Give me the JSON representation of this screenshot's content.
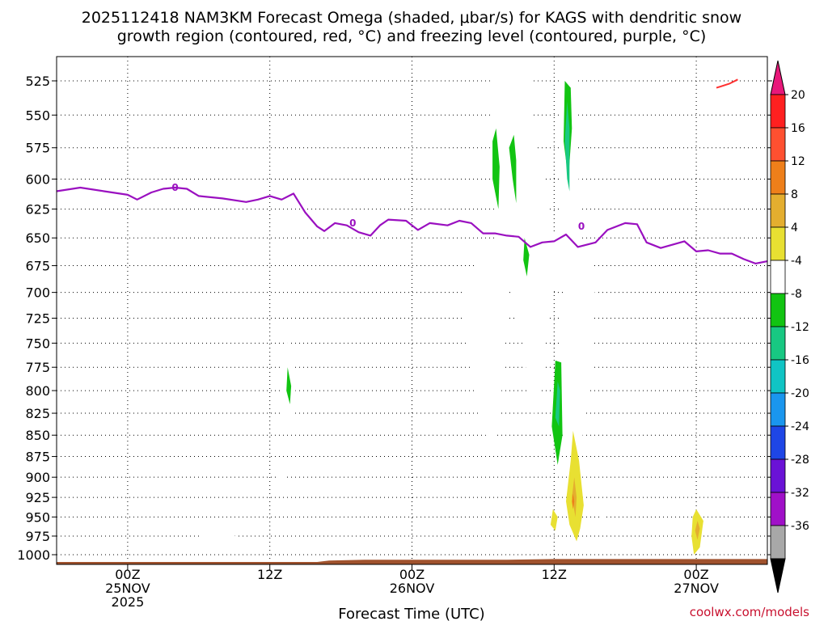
{
  "chart_data": {
    "type": "heatmap",
    "title": "2025112418 NAM3KM Forecast Omega (shaded, μbar/s) for KAGS with dendritic snow",
    "subtitle": "growth region (contoured, red, °C) and freezing level (contoured, purple, °C)",
    "xlabel": "Forecast Time (UTC)",
    "credit": "coolwx.com/models",
    "x_ticks": [
      {
        "hour": 6,
        "lines": [
          "00Z",
          "25NOV",
          "2025"
        ]
      },
      {
        "hour": 18,
        "lines": [
          "12Z"
        ]
      },
      {
        "hour": 30,
        "lines": [
          "00Z",
          "26NOV"
        ]
      },
      {
        "hour": 42,
        "lines": [
          "12Z"
        ]
      },
      {
        "hour": 54,
        "lines": [
          "00Z",
          "27NOV"
        ]
      }
    ],
    "xlim": [
      0,
      60
    ],
    "y_ticks": [
      525,
      550,
      575,
      600,
      625,
      650,
      675,
      700,
      725,
      750,
      775,
      800,
      825,
      850,
      875,
      900,
      925,
      950,
      975,
      1000
    ],
    "ylim": [
      1015,
      512
    ],
    "y_scale": "log-pressure",
    "grid": true,
    "colorbar": {
      "labels": [
        "20",
        "16",
        "12",
        "8",
        "4",
        "-4",
        "-8",
        "-12",
        "-16",
        "-20",
        "-24",
        "-28",
        "-32",
        "-36"
      ],
      "colors": [
        "#ff2020",
        "#ff5030",
        "#ee7f1a",
        "#e4ae2f",
        "#e8e032",
        "#ffffff",
        "#12c412",
        "#18c882",
        "#10c4c4",
        "#1a96ee",
        "#1e46e6",
        "#6a12d6",
        "#a010c8",
        "#a8a8a8"
      ],
      "top_cap": "#e8187a",
      "bottom_cap": "#000000"
    },
    "freezing_level": {
      "color": "#9a10c0",
      "label": "0",
      "points": [
        [
          0,
          610
        ],
        [
          2,
          607
        ],
        [
          4,
          610
        ],
        [
          6,
          613
        ],
        [
          6.8,
          617
        ],
        [
          8,
          611
        ],
        [
          9,
          608
        ],
        [
          10,
          607
        ],
        [
          11,
          608
        ],
        [
          12,
          614
        ],
        [
          14,
          616
        ],
        [
          16,
          619
        ],
        [
          17,
          617
        ],
        [
          18,
          614
        ],
        [
          19,
          617
        ],
        [
          20,
          612
        ],
        [
          21,
          628
        ],
        [
          22,
          640
        ],
        [
          22.6,
          644
        ],
        [
          23.5,
          637
        ],
        [
          24.5,
          639
        ],
        [
          25.5,
          645
        ],
        [
          26.5,
          648
        ],
        [
          27.3,
          639
        ],
        [
          28,
          634
        ],
        [
          29.5,
          635
        ],
        [
          30.5,
          643
        ],
        [
          31.5,
          637
        ],
        [
          33,
          639
        ],
        [
          34,
          635
        ],
        [
          35,
          637
        ],
        [
          36,
          646
        ],
        [
          37,
          646
        ],
        [
          38,
          648
        ],
        [
          39,
          649
        ],
        [
          40,
          658
        ],
        [
          41,
          654
        ],
        [
          42,
          653
        ],
        [
          43,
          647
        ],
        [
          44,
          658
        ],
        [
          45.5,
          654
        ],
        [
          46.5,
          643
        ],
        [
          48,
          637
        ],
        [
          49,
          638
        ],
        [
          49.8,
          654
        ],
        [
          51,
          659
        ],
        [
          52,
          656
        ],
        [
          53,
          653
        ],
        [
          54,
          662
        ],
        [
          55,
          661
        ],
        [
          56,
          664
        ],
        [
          57,
          664
        ],
        [
          58,
          669
        ],
        [
          59,
          673
        ],
        [
          60,
          671
        ]
      ],
      "labels_at": [
        [
          10,
          607
        ],
        [
          25,
          637
        ],
        [
          44.3,
          640
        ]
      ]
    },
    "dgz_contour": {
      "color": "#ff3030",
      "points": [
        [
          55.7,
          530
        ],
        [
          56.8,
          527
        ],
        [
          57.5,
          524
        ]
      ]
    },
    "omega_regions": [
      {
        "level": "-4",
        "points": [
          [
            36.6,
            512
          ],
          [
            37.2,
            650
          ],
          [
            36,
            660
          ],
          [
            34.5,
            690
          ],
          [
            34.2,
            730
          ],
          [
            35,
            770
          ],
          [
            35.8,
            840
          ],
          [
            37,
            868
          ],
          [
            37.5,
            810
          ],
          [
            38.2,
            690
          ],
          [
            39.2,
            740
          ],
          [
            40.2,
            830
          ],
          [
            41,
            790
          ],
          [
            41.5,
            720
          ],
          [
            42.2,
            690
          ],
          [
            42.8,
            700
          ],
          [
            42.5,
            750
          ],
          [
            42.5,
            830
          ],
          [
            43.5,
            880
          ],
          [
            44.3,
            860
          ],
          [
            45.2,
            780
          ],
          [
            45.5,
            680
          ],
          [
            44.2,
            650
          ],
          [
            43.8,
            512
          ],
          [
            42.6,
            512
          ],
          [
            42.6,
            650
          ],
          [
            41.5,
            640
          ],
          [
            41,
            580
          ],
          [
            40.4,
            580
          ],
          [
            40,
            512
          ]
        ]
      },
      {
        "level": "-8",
        "points": [
          [
            38.6,
            565
          ],
          [
            38.8,
            585
          ],
          [
            38.8,
            620
          ],
          [
            38.5,
            600
          ],
          [
            38.2,
            575
          ]
        ]
      },
      {
        "level": "-8",
        "points": [
          [
            37.1,
            560
          ],
          [
            37.4,
            590
          ],
          [
            37.3,
            625
          ],
          [
            36.8,
            600
          ],
          [
            36.8,
            570
          ]
        ]
      },
      {
        "level": "-8",
        "points": [
          [
            42.9,
            525
          ],
          [
            43.4,
            530
          ],
          [
            43.5,
            560
          ],
          [
            43.2,
            600
          ],
          [
            42.8,
            570
          ]
        ]
      },
      {
        "level": "-8",
        "points": [
          [
            42.1,
            768
          ],
          [
            42.6,
            770
          ],
          [
            42.7,
            850
          ],
          [
            42.3,
            885
          ],
          [
            41.8,
            840
          ]
        ]
      },
      {
        "level": "-8",
        "points": [
          [
            39.5,
            650
          ],
          [
            39.9,
            665
          ],
          [
            39.7,
            685
          ],
          [
            39.4,
            670
          ]
        ]
      },
      {
        "level": "-12",
        "points": [
          [
            43.1,
            540
          ],
          [
            43.3,
            560
          ],
          [
            43.3,
            610
          ],
          [
            43.1,
            600
          ],
          [
            42.9,
            570
          ]
        ]
      },
      {
        "level": "-12",
        "points": [
          [
            42.3,
            790
          ],
          [
            42.5,
            800
          ],
          [
            42.4,
            840
          ],
          [
            42.1,
            830
          ]
        ]
      },
      {
        "level": "-4",
        "points": [
          [
            19.4,
            745
          ],
          [
            20.1,
            775
          ],
          [
            20.2,
            820
          ],
          [
            19.5,
            845
          ],
          [
            18.9,
            825
          ],
          [
            18.8,
            780
          ]
        ]
      },
      {
        "level": "-8",
        "points": [
          [
            19.5,
            775
          ],
          [
            19.8,
            795
          ],
          [
            19.7,
            815
          ],
          [
            19.4,
            800
          ]
        ]
      },
      {
        "level": "-4",
        "points": [
          [
            19.0,
            877
          ],
          [
            19.2,
            890
          ],
          [
            19.2,
            910
          ],
          [
            18.9,
            920
          ],
          [
            18.7,
            900
          ]
        ]
      },
      {
        "level": "-4",
        "points": [
          [
            12.2,
            974
          ],
          [
            13.5,
            972
          ],
          [
            15.2,
            975
          ],
          [
            13.5,
            981
          ],
          [
            12.2,
            978
          ]
        ]
      },
      {
        "level": "-4",
        "points": [
          [
            46.0,
            935
          ],
          [
            46.3,
            945
          ],
          [
            46.3,
            968
          ],
          [
            46.0,
            975
          ],
          [
            45.8,
            955
          ]
        ]
      },
      {
        "level": "4",
        "points": [
          [
            43.6,
            845
          ],
          [
            44.1,
            880
          ],
          [
            44.5,
            935
          ],
          [
            44.2,
            965
          ],
          [
            43.9,
            982
          ],
          [
            43.3,
            960
          ],
          [
            43.0,
            930
          ],
          [
            43.4,
            880
          ]
        ]
      },
      {
        "level": "8",
        "points": [
          [
            43.7,
            900
          ],
          [
            43.9,
            925
          ],
          [
            43.8,
            950
          ],
          [
            43.5,
            925
          ]
        ]
      },
      {
        "level": "12",
        "points": [
          [
            43.6,
            920
          ],
          [
            43.7,
            930
          ],
          [
            43.6,
            940
          ],
          [
            43.5,
            930
          ]
        ]
      },
      {
        "level": "4",
        "points": [
          [
            41.9,
            940
          ],
          [
            42.3,
            950
          ],
          [
            42.1,
            968
          ],
          [
            41.7,
            960
          ]
        ]
      },
      {
        "level": "4",
        "points": [
          [
            54.0,
            940
          ],
          [
            54.6,
            955
          ],
          [
            54.3,
            990
          ],
          [
            53.8,
            1000
          ],
          [
            53.6,
            975
          ],
          [
            53.7,
            950
          ]
        ]
      },
      {
        "level": "8",
        "points": [
          [
            54.1,
            955
          ],
          [
            54.3,
            965
          ],
          [
            54.1,
            980
          ],
          [
            53.9,
            968
          ]
        ]
      }
    ],
    "terrain": {
      "color": "#a0522d",
      "points": [
        [
          0,
          1010
        ],
        [
          22,
          1010
        ],
        [
          23,
          1008
        ],
        [
          26,
          1007
        ],
        [
          38,
          1007
        ],
        [
          42,
          1006
        ],
        [
          60,
          1006
        ]
      ]
    }
  }
}
